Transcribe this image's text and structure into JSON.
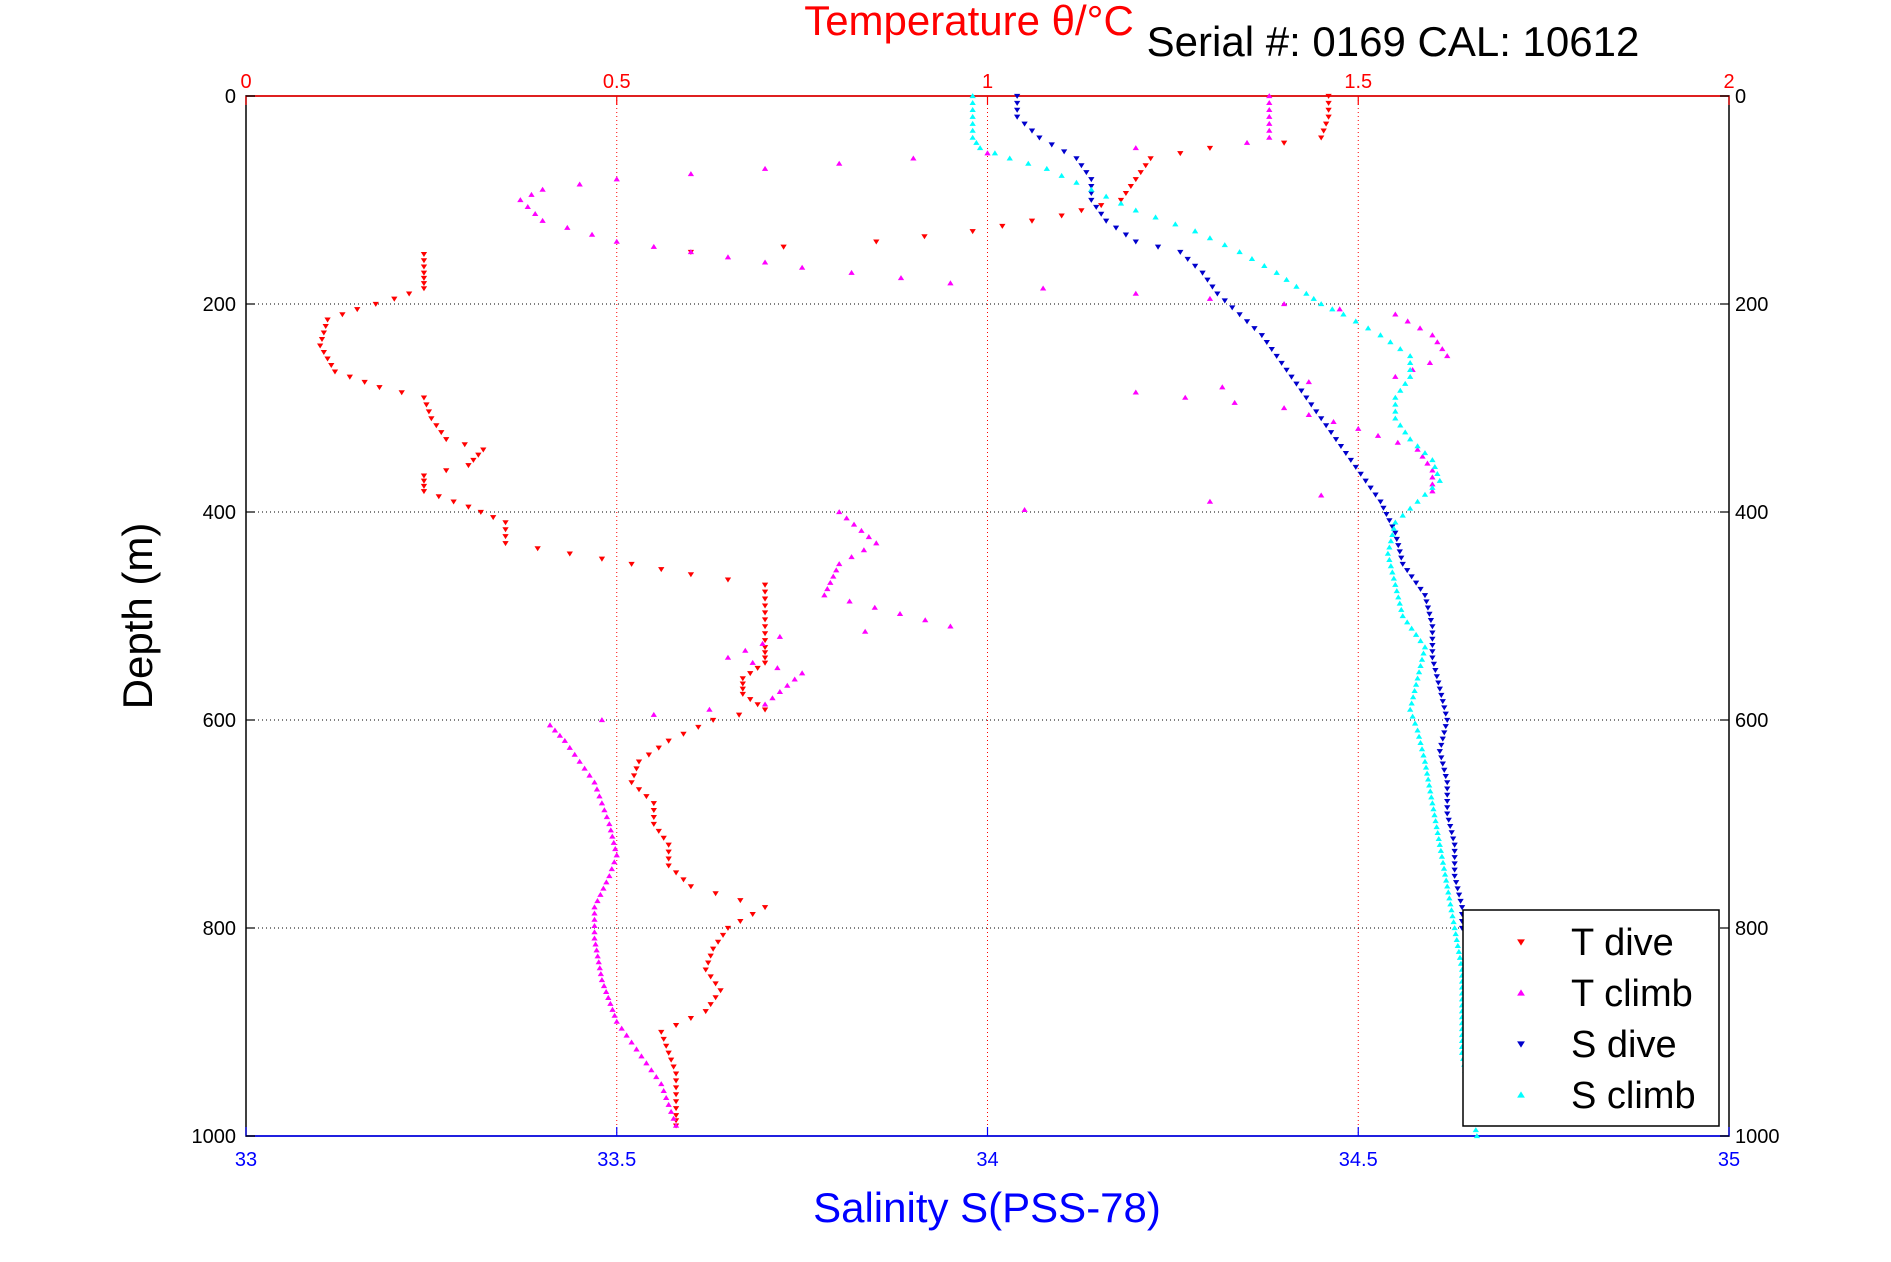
{
  "chart_data": {
    "type": "scatter",
    "title": "Temperature θ/°C",
    "annotation": "Serial #: 0169 CAL: 10612",
    "xlabel": "Salinity S(PSS-78)",
    "ylabel": "Depth (m)",
    "x_top_axis": {
      "label": "Temperature θ/°C",
      "range": [
        0,
        2
      ],
      "ticks": [
        "0",
        "0.5",
        "1",
        "1.5",
        "2"
      ],
      "color": "#ff0000"
    },
    "x_bottom_axis": {
      "label": "Salinity S(PSS-78)",
      "range": [
        33,
        35
      ],
      "ticks": [
        "33",
        "33.5",
        "34",
        "34.5",
        "35"
      ],
      "color": "#0000ff"
    },
    "y_axis": {
      "label": "Depth (m)",
      "range": [
        0,
        1000
      ],
      "reversed": true,
      "ticks": [
        "0",
        "200",
        "400",
        "600",
        "800",
        "1000"
      ]
    },
    "grid": true,
    "legend_position": "bottom-right",
    "series": [
      {
        "name": "T dive",
        "axis": "temperature",
        "color": "#ff0000",
        "marker": "triangle-down",
        "points": [
          [
            1.46,
            0
          ],
          [
            1.46,
            20
          ],
          [
            1.45,
            40
          ],
          [
            1.4,
            45
          ],
          [
            1.3,
            50
          ],
          [
            1.22,
            60
          ],
          [
            1.2,
            80
          ],
          [
            1.18,
            100
          ],
          [
            1.1,
            115
          ],
          [
            0.98,
            130
          ],
          [
            0.85,
            140
          ],
          [
            0.6,
            150
          ],
          [
            0.24,
            152
          ],
          [
            0.24,
            170
          ],
          [
            0.24,
            185
          ],
          [
            0.2,
            195
          ],
          [
            0.15,
            205
          ],
          [
            0.11,
            215
          ],
          [
            0.1,
            240
          ],
          [
            0.12,
            265
          ],
          [
            0.18,
            280
          ],
          [
            0.24,
            290
          ],
          [
            0.25,
            310
          ],
          [
            0.27,
            330
          ],
          [
            0.32,
            340
          ],
          [
            0.3,
            355
          ],
          [
            0.24,
            365
          ],
          [
            0.24,
            380
          ],
          [
            0.3,
            395
          ],
          [
            0.35,
            410
          ],
          [
            0.35,
            430
          ],
          [
            0.48,
            445
          ],
          [
            0.6,
            460
          ],
          [
            0.7,
            470
          ],
          [
            0.7,
            490
          ],
          [
            0.7,
            510
          ],
          [
            0.7,
            530
          ],
          [
            0.7,
            545
          ],
          [
            0.67,
            560
          ],
          [
            0.67,
            575
          ],
          [
            0.7,
            590
          ],
          [
            0.63,
            600
          ],
          [
            0.57,
            620
          ],
          [
            0.53,
            640
          ],
          [
            0.52,
            660
          ],
          [
            0.55,
            680
          ],
          [
            0.55,
            700
          ],
          [
            0.57,
            720
          ],
          [
            0.57,
            740
          ],
          [
            0.6,
            760
          ],
          [
            0.7,
            780
          ],
          [
            0.65,
            800
          ],
          [
            0.63,
            820
          ],
          [
            0.62,
            840
          ],
          [
            0.64,
            860
          ],
          [
            0.62,
            880
          ],
          [
            0.56,
            900
          ],
          [
            0.57,
            920
          ],
          [
            0.58,
            940
          ],
          [
            0.58,
            960
          ],
          [
            0.58,
            980
          ],
          [
            0.58,
            990
          ]
        ]
      },
      {
        "name": "T climb",
        "axis": "temperature",
        "color": "#ff00ff",
        "marker": "triangle-up",
        "points": [
          [
            0.58,
            990
          ],
          [
            0.57,
            970
          ],
          [
            0.56,
            950
          ],
          [
            0.54,
            930
          ],
          [
            0.52,
            910
          ],
          [
            0.5,
            890
          ],
          [
            0.48,
            850
          ],
          [
            0.47,
            810
          ],
          [
            0.47,
            780
          ],
          [
            0.49,
            750
          ],
          [
            0.5,
            730
          ],
          [
            0.49,
            700
          ],
          [
            0.48,
            680
          ],
          [
            0.47,
            660
          ],
          [
            0.45,
            640
          ],
          [
            0.43,
            620
          ],
          [
            0.41,
            605
          ],
          [
            0.55,
            595
          ],
          [
            0.7,
            585
          ],
          [
            0.75,
            555
          ],
          [
            0.65,
            540
          ],
          [
            0.72,
            520
          ],
          [
            0.95,
            510
          ],
          [
            0.78,
            480
          ],
          [
            0.8,
            450
          ],
          [
            0.85,
            430
          ],
          [
            0.8,
            400
          ],
          [
            1.05,
            398
          ],
          [
            1.3,
            390
          ],
          [
            1.45,
            384
          ],
          [
            1.6,
            380
          ],
          [
            1.6,
            360
          ],
          [
            1.58,
            340
          ],
          [
            1.5,
            320
          ],
          [
            1.4,
            300
          ],
          [
            1.2,
            285
          ],
          [
            1.55,
            270
          ],
          [
            1.62,
            250
          ],
          [
            1.6,
            230
          ],
          [
            1.55,
            210
          ],
          [
            1.4,
            200
          ],
          [
            1.2,
            190
          ],
          [
            0.95,
            180
          ],
          [
            0.75,
            165
          ],
          [
            0.6,
            150
          ],
          [
            0.5,
            140
          ],
          [
            0.4,
            120
          ],
          [
            0.37,
            100
          ],
          [
            0.4,
            90
          ],
          [
            0.5,
            80
          ],
          [
            0.7,
            70
          ],
          [
            0.9,
            60
          ],
          [
            1.0,
            55
          ],
          [
            1.2,
            50
          ],
          [
            1.35,
            45
          ],
          [
            1.38,
            40
          ],
          [
            1.38,
            20
          ],
          [
            1.38,
            0
          ]
        ]
      },
      {
        "name": "S dive",
        "axis": "salinity",
        "color": "#0000cc",
        "marker": "triangle-down",
        "points": [
          [
            34.04,
            0
          ],
          [
            34.04,
            20
          ],
          [
            34.07,
            40
          ],
          [
            34.12,
            60
          ],
          [
            34.14,
            80
          ],
          [
            34.14,
            100
          ],
          [
            34.16,
            120
          ],
          [
            34.2,
            140
          ],
          [
            34.26,
            150
          ],
          [
            34.29,
            170
          ],
          [
            34.31,
            190
          ],
          [
            34.34,
            210
          ],
          [
            34.37,
            230
          ],
          [
            34.39,
            250
          ],
          [
            34.41,
            270
          ],
          [
            34.43,
            290
          ],
          [
            34.45,
            310
          ],
          [
            34.47,
            330
          ],
          [
            34.49,
            350
          ],
          [
            34.51,
            370
          ],
          [
            34.53,
            390
          ],
          [
            34.55,
            420
          ],
          [
            34.56,
            450
          ],
          [
            34.59,
            480
          ],
          [
            34.6,
            510
          ],
          [
            34.6,
            540
          ],
          [
            34.61,
            570
          ],
          [
            34.62,
            600
          ],
          [
            34.61,
            630
          ],
          [
            34.62,
            660
          ],
          [
            34.62,
            690
          ],
          [
            34.63,
            720
          ],
          [
            34.63,
            750
          ],
          [
            34.64,
            780
          ],
          [
            34.64,
            800
          ]
        ]
      },
      {
        "name": "S climb",
        "axis": "salinity",
        "color": "#00ffff",
        "marker": "triangle-up",
        "points": [
          [
            34.66,
            1000
          ],
          [
            34.65,
            960
          ],
          [
            34.64,
            920
          ],
          [
            34.64,
            880
          ],
          [
            34.64,
            840
          ],
          [
            34.63,
            800
          ],
          [
            34.62,
            760
          ],
          [
            34.61,
            720
          ],
          [
            34.6,
            680
          ],
          [
            34.59,
            640
          ],
          [
            34.58,
            610
          ],
          [
            34.57,
            590
          ],
          [
            34.58,
            560
          ],
          [
            34.59,
            530
          ],
          [
            34.56,
            500
          ],
          [
            34.55,
            470
          ],
          [
            34.54,
            440
          ],
          [
            34.55,
            410
          ],
          [
            34.58,
            390
          ],
          [
            34.61,
            370
          ],
          [
            34.6,
            350
          ],
          [
            34.57,
            330
          ],
          [
            34.55,
            310
          ],
          [
            34.55,
            290
          ],
          [
            34.57,
            270
          ],
          [
            34.57,
            250
          ],
          [
            34.53,
            230
          ],
          [
            34.48,
            210
          ],
          [
            34.45,
            200
          ],
          [
            34.43,
            190
          ],
          [
            34.39,
            170
          ],
          [
            34.34,
            150
          ],
          [
            34.28,
            130
          ],
          [
            34.2,
            110
          ],
          [
            34.14,
            90
          ],
          [
            34.08,
            70
          ],
          [
            34.03,
            60
          ],
          [
            33.99,
            50
          ],
          [
            33.98,
            40
          ],
          [
            33.98,
            20
          ],
          [
            33.98,
            0
          ]
        ]
      }
    ]
  }
}
